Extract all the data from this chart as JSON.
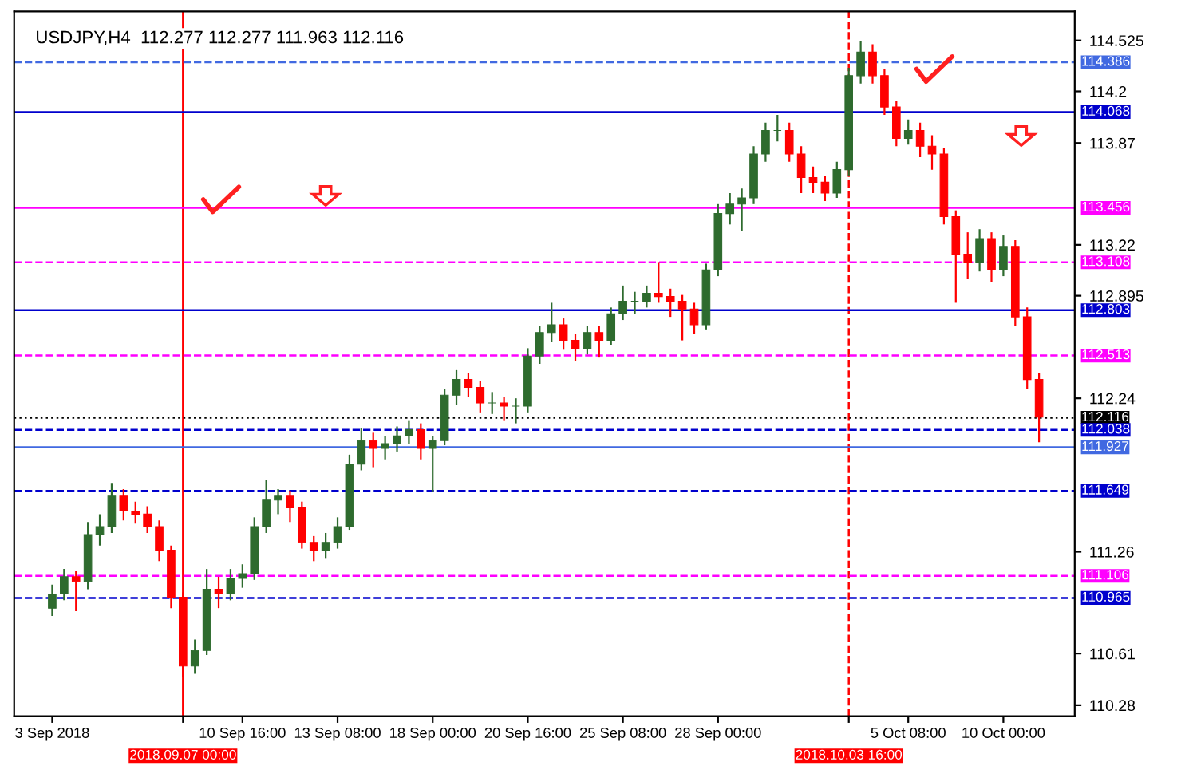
{
  "chart_data": {
    "type": "candlestick",
    "title": "USDJPY,H4  112.277 112.277 111.963 112.116",
    "categories": [
      "3 Sep 2018",
      null,
      null,
      null,
      null,
      null,
      null,
      null,
      null,
      null,
      null,
      "2018.09.07 00:00",
      null,
      null,
      null,
      null,
      "10 Sep 16:00",
      null,
      null,
      null,
      null,
      null,
      null,
      null,
      "13 Sep 08:00",
      null,
      null,
      null,
      null,
      null,
      null,
      null,
      "18 Sep 00:00",
      null,
      null,
      null,
      null,
      null,
      null,
      null,
      "20 Sep 16:00",
      null,
      null,
      null,
      null,
      null,
      null,
      null,
      "25 Sep 08:00",
      null,
      null,
      null,
      null,
      null,
      null,
      null,
      "28 Sep 00:00",
      null,
      null,
      null,
      null,
      null,
      null,
      null,
      null,
      null,
      null,
      "2018.10.03 16:00",
      null,
      null,
      null,
      null,
      "5 Oct 08:00",
      null,
      null,
      null,
      null,
      null,
      null,
      null,
      "10 Oct 00:00",
      null,
      null,
      null
    ],
    "ohlc": [
      [
        110.9,
        111.05,
        110.85,
        110.99
      ],
      [
        110.99,
        111.15,
        110.95,
        111.1
      ],
      [
        111.1,
        111.14,
        110.88,
        111.07
      ],
      [
        111.07,
        111.45,
        111.02,
        111.37
      ],
      [
        111.37,
        111.5,
        111.3,
        111.42
      ],
      [
        111.42,
        111.7,
        111.38,
        111.62
      ],
      [
        111.62,
        111.66,
        111.46,
        111.52
      ],
      [
        111.52,
        111.58,
        111.44,
        111.5
      ],
      [
        111.5,
        111.55,
        111.38,
        111.42
      ],
      [
        111.42,
        111.46,
        111.2,
        111.27
      ],
      [
        111.27,
        111.3,
        110.9,
        110.97
      ],
      [
        110.97,
        111.0,
        110.46,
        110.53
      ],
      [
        110.53,
        110.7,
        110.48,
        110.63
      ],
      [
        110.63,
        111.15,
        110.6,
        111.02
      ],
      [
        111.02,
        111.1,
        110.9,
        110.99
      ],
      [
        110.99,
        111.15,
        110.95,
        111.09
      ],
      [
        111.09,
        111.18,
        111.03,
        111.12
      ],
      [
        111.12,
        111.48,
        111.08,
        111.42
      ],
      [
        111.42,
        111.72,
        111.38,
        111.59
      ],
      [
        111.59,
        111.66,
        111.5,
        111.62
      ],
      [
        111.62,
        111.65,
        111.45,
        111.54
      ],
      [
        111.54,
        111.58,
        111.28,
        111.32
      ],
      [
        111.32,
        111.36,
        111.2,
        111.27
      ],
      [
        111.27,
        111.38,
        111.22,
        111.32
      ],
      [
        111.32,
        111.48,
        111.28,
        111.42
      ],
      [
        111.42,
        111.88,
        111.4,
        111.82
      ],
      [
        111.82,
        112.05,
        111.78,
        111.97
      ],
      [
        111.97,
        112.02,
        111.8,
        111.92
      ],
      [
        111.92,
        112.0,
        111.85,
        111.95
      ],
      [
        111.95,
        112.06,
        111.9,
        112.0
      ],
      [
        112.0,
        112.1,
        111.95,
        112.04
      ],
      [
        112.04,
        112.08,
        111.85,
        111.92
      ],
      [
        111.92,
        112.0,
        111.64,
        111.97
      ],
      [
        111.97,
        112.3,
        111.94,
        112.26
      ],
      [
        112.26,
        112.42,
        112.2,
        112.36
      ],
      [
        112.36,
        112.4,
        112.25,
        112.31
      ],
      [
        112.31,
        112.35,
        112.15,
        112.21
      ],
      [
        112.21,
        112.28,
        112.14,
        112.21
      ],
      [
        112.21,
        112.25,
        112.1,
        112.19
      ],
      [
        112.19,
        112.24,
        112.08,
        112.19
      ],
      [
        112.19,
        112.56,
        112.15,
        112.51
      ],
      [
        112.51,
        112.7,
        112.46,
        112.66
      ],
      [
        112.66,
        112.85,
        112.6,
        112.71
      ],
      [
        112.71,
        112.75,
        112.55,
        112.61
      ],
      [
        112.61,
        112.65,
        112.48,
        112.56
      ],
      [
        112.56,
        112.7,
        112.52,
        112.66
      ],
      [
        112.66,
        112.7,
        112.5,
        112.61
      ],
      [
        112.61,
        112.82,
        112.58,
        112.78
      ],
      [
        112.78,
        112.96,
        112.74,
        112.86
      ],
      [
        112.86,
        112.92,
        112.78,
        112.86
      ],
      [
        112.86,
        112.96,
        112.82,
        112.91
      ],
      [
        112.91,
        113.11,
        112.85,
        112.89
      ],
      [
        112.89,
        112.94,
        112.76,
        112.86
      ],
      [
        112.86,
        112.9,
        112.61,
        112.81
      ],
      [
        112.81,
        112.85,
        112.65,
        112.71
      ],
      [
        112.71,
        113.1,
        112.68,
        113.06
      ],
      [
        113.06,
        113.48,
        113.02,
        113.42
      ],
      [
        113.42,
        113.55,
        113.35,
        113.48
      ],
      [
        113.48,
        113.58,
        113.31,
        113.52
      ],
      [
        113.52,
        113.85,
        113.48,
        113.8
      ],
      [
        113.8,
        114.0,
        113.75,
        113.95
      ],
      [
        113.95,
        114.05,
        113.88,
        113.95
      ],
      [
        113.95,
        114.0,
        113.75,
        113.8
      ],
      [
        113.8,
        113.85,
        113.55,
        113.65
      ],
      [
        113.65,
        113.72,
        113.55,
        113.62
      ],
      [
        113.62,
        113.66,
        113.5,
        113.55
      ],
      [
        113.55,
        113.75,
        113.52,
        113.7
      ],
      [
        113.7,
        114.35,
        113.66,
        114.3
      ],
      [
        114.3,
        114.52,
        114.25,
        114.45
      ],
      [
        114.45,
        114.5,
        114.25,
        114.3
      ],
      [
        114.3,
        114.34,
        114.05,
        114.1
      ],
      [
        114.1,
        114.14,
        113.85,
        113.9
      ],
      [
        113.9,
        114.02,
        113.86,
        113.95
      ],
      [
        113.95,
        114.0,
        113.78,
        113.85
      ],
      [
        113.85,
        113.92,
        113.7,
        113.8
      ],
      [
        113.8,
        113.84,
        113.35,
        113.4
      ],
      [
        113.4,
        113.44,
        112.85,
        113.16
      ],
      [
        113.16,
        113.3,
        113.0,
        113.11
      ],
      [
        113.11,
        113.32,
        113.05,
        113.26
      ],
      [
        113.26,
        113.3,
        112.98,
        113.06
      ],
      [
        113.06,
        113.28,
        113.02,
        113.21
      ],
      [
        113.21,
        113.25,
        112.7,
        112.76
      ],
      [
        112.76,
        112.82,
        112.3,
        112.36
      ],
      [
        112.36,
        112.4,
        111.96,
        112.12
      ]
    ],
    "colors": [
      "#2e6b2e",
      "#2e6b2e",
      "#ff0000",
      "#2e6b2e",
      "#2e6b2e",
      "#2e6b2e",
      "#ff0000",
      "#ff0000",
      "#ff0000",
      "#ff0000",
      "#ff0000",
      "#ff0000",
      "#2e6b2e",
      "#2e6b2e",
      "#ff0000",
      "#2e6b2e",
      "#2e6b2e",
      "#2e6b2e",
      "#2e6b2e",
      "#2e6b2e",
      "#ff0000",
      "#ff0000",
      "#ff0000",
      "#2e6b2e",
      "#2e6b2e",
      "#2e6b2e",
      "#2e6b2e",
      "#ff0000",
      "#2e6b2e",
      "#2e6b2e",
      "#2e6b2e",
      "#ff0000",
      "#2e6b2e",
      "#2e6b2e",
      "#2e6b2e",
      "#ff0000",
      "#ff0000",
      "#2e6b2e",
      "#ff0000",
      "#2e6b2e",
      "#2e6b2e",
      "#2e6b2e",
      "#2e6b2e",
      "#ff0000",
      "#ff0000",
      "#2e6b2e",
      "#ff0000",
      "#2e6b2e",
      "#2e6b2e",
      "#2e6b2e",
      "#2e6b2e",
      "#ff0000",
      "#ff0000",
      "#ff0000",
      "#ff0000",
      "#2e6b2e",
      "#2e6b2e",
      "#2e6b2e",
      "#2e6b2e",
      "#2e6b2e",
      "#2e6b2e",
      "#2e6b2e",
      "#ff0000",
      "#ff0000",
      "#ff0000",
      "#ff0000",
      "#2e6b2e",
      "#2e6b2e",
      "#2e6b2e",
      "#ff0000",
      "#ff0000",
      "#ff0000",
      "#2e6b2e",
      "#ff0000",
      "#ff0000",
      "#ff0000",
      "#ff0000",
      "#ff0000",
      "#2e6b2e",
      "#ff0000",
      "#2e6b2e",
      "#ff0000",
      "#ff0000",
      "#ff0000"
    ],
    "ylim": [
      110.21,
      114.71
    ],
    "yticks": [
      110.28,
      110.61,
      111.26,
      112.24,
      112.895,
      113.22,
      113.87,
      114.2,
      114.525
    ],
    "ref_lines": [
      {
        "axis": "x",
        "value": "2018.09.07 00:00",
        "color": "#ff0000",
        "line_style": "solid"
      },
      {
        "axis": "x",
        "value": "2018.10.03 16:00",
        "color": "#ff0000",
        "line_style": "dashed"
      },
      {
        "axis": "y",
        "value": 114.386,
        "label": "114.386",
        "color": "#4169e1",
        "line_style": "dashed"
      },
      {
        "axis": "y",
        "value": 114.068,
        "label": "114.068",
        "color": "#0000cd",
        "line_style": "solid"
      },
      {
        "axis": "y",
        "value": 113.456,
        "label": "113.456",
        "color": "#ff00ff",
        "line_style": "solid"
      },
      {
        "axis": "y",
        "value": 113.108,
        "label": "113.108",
        "color": "#ff00ff",
        "line_style": "dashed"
      },
      {
        "axis": "y",
        "value": 112.803,
        "label": "112.803",
        "color": "#0000cd",
        "line_style": "solid"
      },
      {
        "axis": "y",
        "value": 112.513,
        "label": "112.513",
        "color": "#ff00ff",
        "line_style": "dashed"
      },
      {
        "axis": "y",
        "value": 112.116,
        "label": "112.116",
        "color": "#000000",
        "line_style": "dotted"
      },
      {
        "axis": "y",
        "value": 112.038,
        "label": "112.038",
        "color": "#0000cd",
        "line_style": "dashed"
      },
      {
        "axis": "y",
        "value": 111.927,
        "label": "111.927",
        "color": "#4169e1",
        "line_style": "solid"
      },
      {
        "axis": "y",
        "value": 111.649,
        "label": "111.649",
        "color": "#0000cd",
        "line_style": "dashed"
      },
      {
        "axis": "y",
        "value": 111.106,
        "label": "111.106",
        "color": "#ff00ff",
        "line_style": "dashed"
      },
      {
        "axis": "y",
        "value": 110.965,
        "label": "110.965",
        "color": "#0000cd",
        "line_style": "dashed"
      }
    ],
    "grid": false,
    "legend": false
  }
}
